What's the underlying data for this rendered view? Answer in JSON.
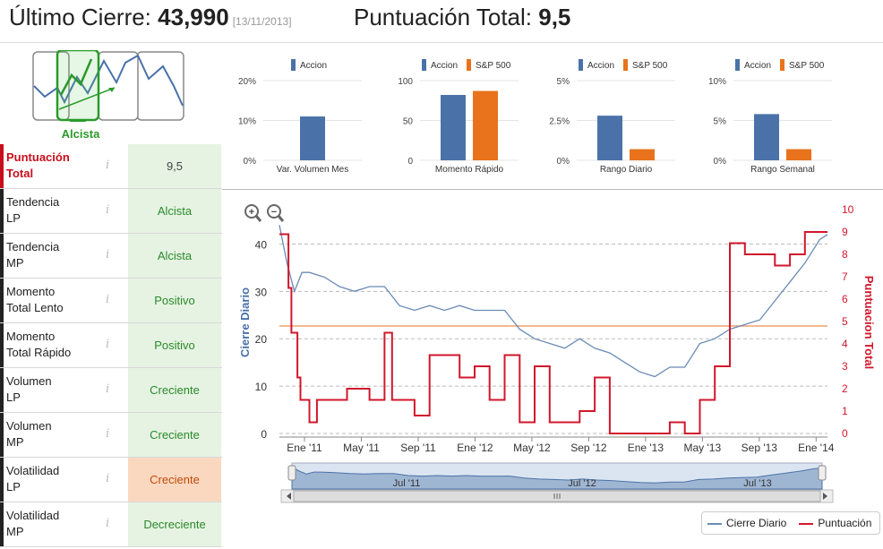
{
  "header": {
    "close_label": "Último Cierre:",
    "close_value": "43,990",
    "close_date": "[13/11/2013]",
    "score_label": "Puntuación Total:",
    "score_value": "9,5"
  },
  "trend_icon": {
    "label": "Alcista"
  },
  "rows": [
    {
      "label_line1": "Puntuación",
      "label_line2": "Total",
      "value": "9,5",
      "highlight": false
    },
    {
      "label_line1": "Tendencia",
      "label_line2": "LP",
      "value": "Alcista",
      "highlight": false
    },
    {
      "label_line1": "Tendencia",
      "label_line2": "MP",
      "value": "Alcista",
      "highlight": false
    },
    {
      "label_line1": "Momento",
      "label_line2": "Total Lento",
      "value": "Positivo",
      "highlight": false
    },
    {
      "label_line1": "Momento",
      "label_line2": "Total Rápido",
      "value": "Positivo",
      "highlight": false
    },
    {
      "label_line1": "Volumen",
      "label_line2": "LP",
      "value": "Creciente",
      "highlight": false
    },
    {
      "label_line1": "Volumen",
      "label_line2": "MP",
      "value": "Creciente",
      "highlight": false
    },
    {
      "label_line1": "Volatilidad",
      "label_line2": "LP",
      "value": "Creciente",
      "highlight": true
    },
    {
      "label_line1": "Volatilidad",
      "label_line2": "MP",
      "value": "Decreciente",
      "highlight": false
    }
  ],
  "info_glyph": "i",
  "colors": {
    "accion": "#4a72a8",
    "sp500": "#e8731c",
    "line": "#6a8bb5",
    "score": "#d1172c",
    "threshold": "#f0a070"
  },
  "chart_data": [
    {
      "type": "bar",
      "legend": [
        "Accion"
      ],
      "categories": [
        "Var. Volumen Mes"
      ],
      "series": [
        {
          "name": "Accion",
          "values": [
            11
          ]
        }
      ],
      "yticks": [
        "20%",
        "10%",
        "0%"
      ],
      "ylim": [
        0,
        20
      ]
    },
    {
      "type": "bar",
      "legend": [
        "Accion",
        "S&P 500"
      ],
      "categories": [
        "Momento Rápido"
      ],
      "series": [
        {
          "name": "Accion",
          "values": [
            82
          ]
        },
        {
          "name": "S&P 500",
          "values": [
            87
          ]
        }
      ],
      "yticks": [
        "100",
        "50",
        "0"
      ],
      "ylim": [
        0,
        100
      ]
    },
    {
      "type": "bar",
      "legend": [
        "Accion",
        "S&P 500"
      ],
      "categories": [
        "Rango Diario"
      ],
      "series": [
        {
          "name": "Accion",
          "values": [
            2.8
          ]
        },
        {
          "name": "S&P 500",
          "values": [
            0.7
          ]
        }
      ],
      "yticks": [
        "5%",
        "2.5%",
        "0%"
      ],
      "ylim": [
        0,
        5
      ]
    },
    {
      "type": "bar",
      "legend": [
        "Accion",
        "S&P 500"
      ],
      "categories": [
        "Rango Semanal"
      ],
      "series": [
        {
          "name": "Accion",
          "values": [
            5.8
          ]
        },
        {
          "name": "S&P 500",
          "values": [
            1.4
          ]
        }
      ],
      "yticks": [
        "10%",
        "5%",
        "0%"
      ],
      "ylim": [
        0,
        10
      ]
    },
    {
      "type": "line",
      "ylabel": "Cierre Diario",
      "y2label": "Puntuacion Total",
      "ylim": [
        0,
        45
      ],
      "y2lim": [
        0,
        10
      ],
      "yticks": [
        "40",
        "30",
        "20",
        "10",
        "0"
      ],
      "y2ticks": [
        "10",
        "9",
        "8",
        "7",
        "6",
        "5",
        "4",
        "3",
        "2",
        "1",
        "0"
      ],
      "xticks": [
        "Ene '11",
        "May '11",
        "Sep '11",
        "Ene '12",
        "May '12",
        "Sep '12",
        "Ene '13",
        "May '13",
        "Sep '13",
        "Ene '14"
      ],
      "threshold": 4.8,
      "navigator_labels": [
        "Jul '11",
        "Jul '12",
        "Jul '13"
      ],
      "series": [
        {
          "name": "Cierre Diario",
          "axis": "left",
          "x": [
            0,
            0.5,
            1,
            1.5,
            2,
            3,
            4,
            5,
            6,
            7,
            8,
            9,
            10,
            11,
            12,
            13,
            14,
            15,
            16,
            17,
            18,
            19,
            20,
            21,
            22,
            23,
            24,
            25,
            26,
            27,
            28,
            29,
            30,
            31,
            32,
            33,
            34,
            35,
            36,
            36.5
          ],
          "y": [
            44,
            36,
            30,
            34,
            34,
            33,
            31,
            30,
            31,
            31,
            27,
            26,
            27,
            26,
            27,
            26,
            26,
            26,
            22,
            20,
            19,
            18,
            20,
            18,
            17,
            15,
            13,
            12,
            14,
            14,
            19,
            20,
            22,
            23,
            24,
            28,
            32,
            36,
            41,
            42
          ]
        },
        {
          "name": "Puntuación",
          "axis": "right",
          "x": [
            0,
            0.6,
            0.8,
            1.2,
            1.4,
            2,
            2.5,
            4,
            4.5,
            6,
            7,
            7.5,
            9,
            10,
            11,
            12,
            13,
            14,
            15,
            16,
            17,
            18,
            19,
            20,
            21,
            22,
            23,
            24,
            25,
            26,
            27,
            28,
            29,
            30,
            31,
            32,
            33,
            34,
            35,
            36,
            36.5
          ],
          "y": [
            8.9,
            6.5,
            4.5,
            2.5,
            1.5,
            0.5,
            1.5,
            1.5,
            2,
            1.5,
            4.5,
            1.5,
            0.8,
            3.5,
            3.5,
            2.5,
            3,
            1.5,
            3.5,
            0.5,
            3,
            0.5,
            0.5,
            1,
            2.5,
            0,
            0,
            0,
            0,
            0.5,
            0,
            1.5,
            3,
            8.5,
            8,
            8,
            7.5,
            8,
            9,
            9,
            9
          ]
        }
      ]
    }
  ],
  "legend": {
    "line_label": "Cierre Diario",
    "score_label": "Puntuación"
  }
}
